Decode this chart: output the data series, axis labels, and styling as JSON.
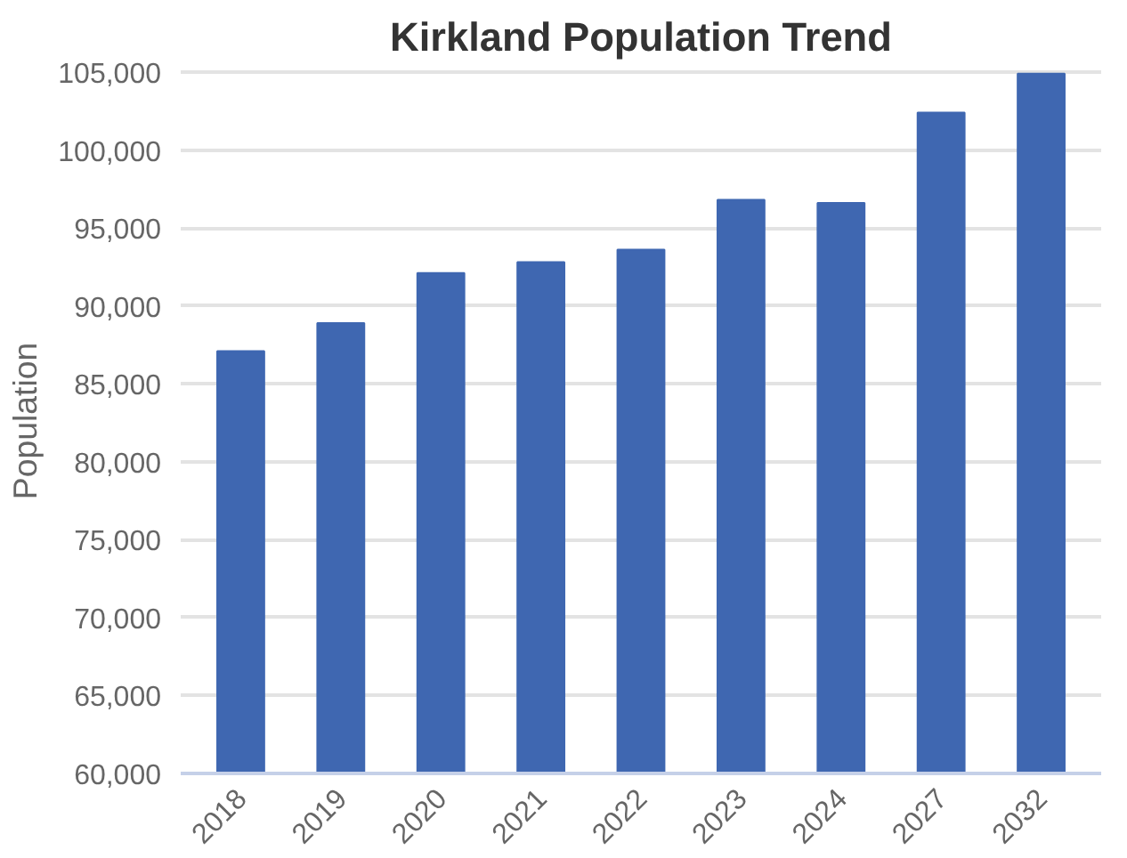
{
  "chart_data": {
    "type": "bar",
    "title": "Kirkland Population Trend",
    "ylabel": "Population",
    "categories": [
      "2018",
      "2019",
      "2020",
      "2021",
      "2022",
      "2023",
      "2024",
      "2027",
      "2032"
    ],
    "values": [
      87100,
      88900,
      92100,
      92800,
      93600,
      96800,
      96600,
      102400,
      104900
    ],
    "color": "#3f67b1",
    "ylim": [
      60000,
      105000
    ],
    "yticks": [
      {
        "value": 60000,
        "label": "60,000"
      },
      {
        "value": 65000,
        "label": "65,000"
      },
      {
        "value": 70000,
        "label": "70,000"
      },
      {
        "value": 75000,
        "label": "75,000"
      },
      {
        "value": 80000,
        "label": "80,000"
      },
      {
        "value": 85000,
        "label": "85,000"
      },
      {
        "value": 90000,
        "label": "90,000"
      },
      {
        "value": 95000,
        "label": "95,000"
      },
      {
        "value": 100000,
        "label": "100,000"
      },
      {
        "value": 105000,
        "label": "105,000"
      }
    ],
    "grid": "y"
  }
}
